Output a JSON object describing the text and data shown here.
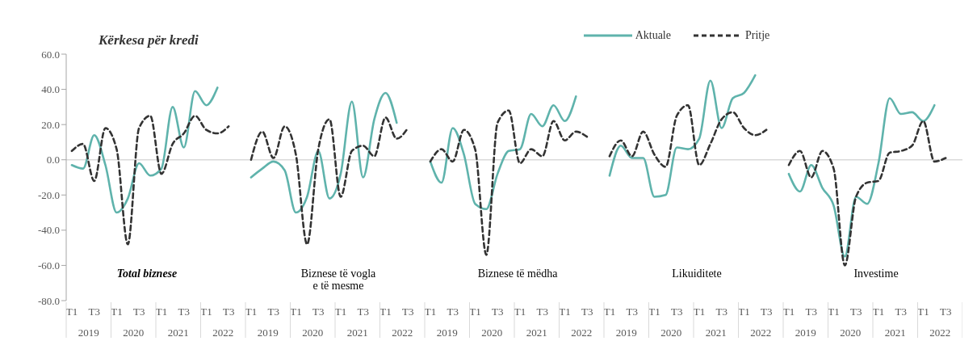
{
  "chart_data": [
    {
      "type": "line",
      "title": "Kërkesa për kredi",
      "categories": [
        "T1",
        null,
        "T3",
        null,
        "T1",
        null,
        "T3",
        null,
        "T1",
        null,
        "T3",
        null,
        "T1",
        null,
        "T3",
        null
      ],
      "ylim": [
        -80,
        60
      ],
      "yticks": [
        {
          "value": -80,
          "label": "-80.0"
        },
        {
          "value": -60,
          "label": "-60.0"
        },
        {
          "value": -40,
          "label": "-40.0"
        },
        {
          "value": -20,
          "label": "-20.0"
        },
        {
          "value": 0,
          "label": "0.0"
        },
        {
          "value": 20,
          "label": "20.0"
        },
        {
          "value": 40,
          "label": "40.0"
        },
        {
          "value": 60,
          "label": "60.0"
        }
      ],
      "grid": false,
      "annotations": [
        "Total biznese",
        "2019",
        "2020",
        "2021",
        "2022"
      ],
      "ref_lines": [
        {
          "axis": "y",
          "value": 0,
          "color": "#d9d9d9"
        }
      ],
      "series": [
        {
          "color": "#5fb3ac",
          "line_style": "solid",
          "values": [
            -3,
            -5,
            14,
            -3,
            -30,
            -22,
            -2,
            -9,
            -5,
            30,
            7,
            39,
            31,
            41,
            null,
            null
          ]
        },
        {
          "color": "#333333",
          "line_style": "dashed",
          "values": [
            5,
            9,
            -12,
            18,
            6,
            -48,
            18,
            25,
            -8,
            9,
            15,
            25,
            17,
            15,
            19,
            null
          ]
        }
      ]
    },
    {
      "type": "line",
      "categories": [
        "T1",
        null,
        "T3",
        null,
        "T1",
        null,
        "T3",
        null,
        "T1",
        null,
        "T3",
        null,
        "T1",
        null,
        "T3",
        null
      ],
      "ylim": [
        -80,
        60
      ],
      "tick_labels": "x",
      "grid": false,
      "annotations": [
        "Biznese të vogla e të mesme",
        "2019",
        "2020",
        "2021",
        "2022"
      ],
      "ref_lines": [
        {
          "axis": "y",
          "value": 0,
          "color": "#d9d9d9"
        }
      ],
      "series": [
        {
          "color": "#5fb3ac",
          "line_style": "solid",
          "values": [
            -10,
            -5,
            -1,
            -6,
            -30,
            -21,
            5,
            -22,
            -8,
            33,
            -10,
            23,
            38,
            21,
            null,
            null
          ]
        },
        {
          "color": "#333333",
          "line_style": "dashed",
          "values": [
            0,
            16,
            1,
            19,
            3,
            -48,
            6,
            23,
            -21,
            5,
            8,
            2,
            24,
            12,
            18,
            null
          ]
        }
      ]
    },
    {
      "type": "line",
      "categories": [
        "T1",
        null,
        "T3",
        null,
        "T1",
        null,
        "T3",
        null,
        "T1",
        null,
        "T3",
        null,
        "T1",
        null,
        "T3",
        null
      ],
      "ylim": [
        -80,
        60
      ],
      "tick_labels": "x",
      "grid": false,
      "annotations": [
        "Biznese të mëdha",
        "2019",
        "2020",
        "2021",
        "2022"
      ],
      "ref_lines": [
        {
          "axis": "y",
          "value": 0,
          "color": "#d9d9d9"
        }
      ],
      "series": [
        {
          "color": "#5fb3ac",
          "line_style": "solid",
          "values": [
            -1,
            -13,
            18,
            3,
            -25,
            -28,
            -8,
            5,
            6,
            26,
            19,
            31,
            22,
            36,
            null,
            null
          ]
        },
        {
          "color": "#333333",
          "line_style": "dashed",
          "values": [
            -1,
            6,
            -1,
            17,
            6,
            -54,
            21,
            28,
            -2,
            6,
            2,
            22,
            11,
            16,
            13,
            null
          ]
        }
      ]
    },
    {
      "type": "line",
      "categories": [
        "T1",
        null,
        "T3",
        null,
        "T1",
        null,
        "T3",
        null,
        "T1",
        null,
        "T3",
        null,
        "T1",
        null,
        "T3",
        null
      ],
      "ylim": [
        -80,
        60
      ],
      "tick_labels": "x",
      "grid": false,
      "legend": "top",
      "annotations": [
        "Likuiditete",
        "2019",
        "2020",
        "2021",
        "2022"
      ],
      "ref_lines": [
        {
          "axis": "y",
          "value": 0,
          "color": "#d9d9d9"
        }
      ],
      "series": [
        {
          "name": "Aktuale",
          "color": "#5fb3ac",
          "line_style": "solid",
          "values": [
            -9,
            8,
            1,
            1,
            -21,
            -20,
            7,
            6,
            12,
            45,
            18,
            35,
            38,
            48,
            null,
            null
          ]
        },
        {
          "name": "Pritje",
          "color": "#333333",
          "line_style": "dashed",
          "values": [
            2,
            11,
            2,
            16,
            3,
            -4,
            25,
            31,
            -3,
            9,
            23,
            27,
            18,
            14,
            17,
            null
          ]
        }
      ]
    },
    {
      "type": "line",
      "categories": [
        "T1",
        null,
        "T3",
        null,
        "T1",
        null,
        "T3",
        null,
        "T1",
        null,
        "T3",
        null,
        "T1",
        null,
        "T3",
        null
      ],
      "ylim": [
        -80,
        60
      ],
      "tick_labels": "x",
      "grid": false,
      "annotations": [
        "Investime",
        "2019",
        "2020",
        "2021",
        "2022"
      ],
      "ref_lines": [
        {
          "axis": "y",
          "value": 0,
          "color": "#d9d9d9"
        }
      ],
      "series": [
        {
          "color": "#5fb3ac",
          "line_style": "solid",
          "values": [
            -8,
            -18,
            -3,
            -16,
            -26,
            -55,
            -21,
            -25,
            -2,
            35,
            26,
            27,
            22,
            31,
            null,
            null
          ]
        },
        {
          "color": "#333333",
          "line_style": "dashed",
          "values": [
            -3,
            5,
            -10,
            5,
            -5,
            -60,
            -21,
            -13,
            -12,
            4,
            5,
            8,
            22,
            -1,
            1,
            null
          ]
        }
      ]
    }
  ]
}
